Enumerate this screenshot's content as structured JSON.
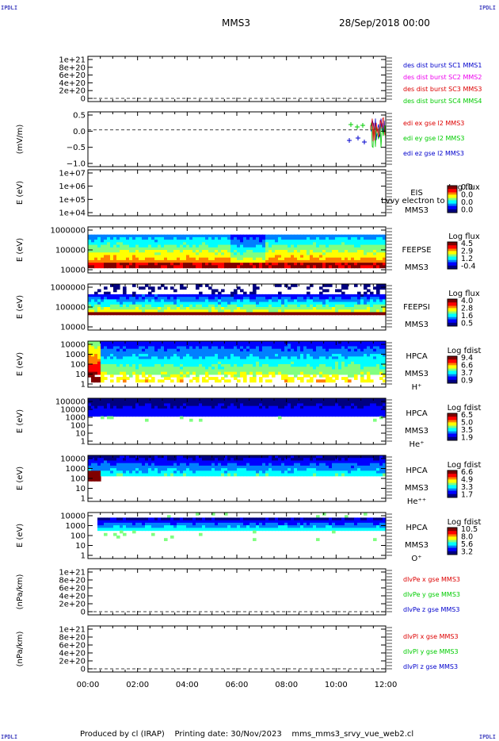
{
  "corner_labels": {
    "top_left": "IPDLI",
    "top_right": "IPDLI",
    "bottom_left": "IPDLI",
    "bottom_right": "IPDLI"
  },
  "header": {
    "spacecraft": "MMS3",
    "datetime": "28/Sep/2018 00:00"
  },
  "footer": {
    "text": "Produced by cl (IRAP)    Printing date: 30/Nov/2023    mms_mms3_srvy_vue_web2.cl"
  },
  "colors": {
    "red": "#dd0000",
    "magenta": "#ee00ee",
    "green": "#00cc00",
    "blue": "#0000cc",
    "colormap": [
      "#000080",
      "#0000ff",
      "#0080ff",
      "#00ffff",
      "#80ff80",
      "#ffff00",
      "#ff8000",
      "#ff0000",
      "#800000"
    ]
  },
  "chart_data": {
    "type": "multi-panel time series",
    "x_ticks": [
      "00:00",
      "02:00",
      "04:00",
      "06:00",
      "08:00",
      "10:00",
      "12:00"
    ],
    "panels": [
      {
        "id": "dist",
        "kind": "line",
        "ylabel": "",
        "yticks": [
          "1e+21",
          "8e+20",
          "6e+20",
          "4e+20",
          "2e+20",
          "0"
        ],
        "legend": [
          {
            "text": "des dist burst SC1 MMS1",
            "color": "#0000cc"
          },
          {
            "text": "des dist burst SC2 MMS2",
            "color": "#ee00ee"
          },
          {
            "text": "des dist burst SC3 MMS3",
            "color": "#dd0000"
          },
          {
            "text": "des dist burst SC4 MMS4",
            "color": "#00cc00"
          }
        ]
      },
      {
        "id": "edi",
        "kind": "line",
        "ylabel": "(mV/m)",
        "yticks": [
          "0.5",
          "0.0",
          "−0.5",
          "−1.0"
        ],
        "legend": [
          {
            "text": "edi ex gse l2 MMS3",
            "color": "#dd0000"
          },
          {
            "text": "edi ey gse l2 MMS3",
            "color": "#00cc00"
          },
          {
            "text": "edi ez gse l2 MMS3",
            "color": "#0000cc"
          }
        ]
      },
      {
        "id": "eis",
        "kind": "spectrogram",
        "ylabel": "E (eV)",
        "yticks": [
          "1e+07",
          "1e+06",
          "1e+05",
          "1e+04"
        ],
        "labels": [
          "EIS",
          "MMS3"
        ],
        "note": "Lvvy electron to",
        "cb_title": "Log flux",
        "cb_ticks": [
          "0.0",
          "0.0",
          "0.0",
          "0.0"
        ]
      },
      {
        "id": "feeps_e",
        "kind": "spectrogram",
        "ylabel": "E (eV)",
        "yticks": [
          "1000000",
          "100000",
          "10000"
        ],
        "labels": [
          "FEEPSE",
          "MMS3"
        ],
        "cb_title": "Log flux",
        "cb_ticks": [
          "4.5",
          "2.9",
          "1.2",
          "-0.4"
        ]
      },
      {
        "id": "feeps_i",
        "kind": "spectrogram",
        "ylabel": "E (eV)",
        "yticks": [
          "1000000",
          "100000",
          "10000"
        ],
        "labels": [
          "FEEPSI",
          "MMS3"
        ],
        "cb_title": "Log flux",
        "cb_ticks": [
          "4.0",
          "2.8",
          "1.6",
          "0.5"
        ]
      },
      {
        "id": "hpca_h",
        "kind": "spectrogram",
        "ylabel": "E (eV)",
        "yticks": [
          "10000",
          "1000",
          "100",
          "10",
          "1"
        ],
        "labels": [
          "HPCA",
          "MMS3",
          "H⁺"
        ],
        "cb_title": "Log fdist",
        "cb_ticks": [
          "9.4",
          "6.6",
          "3.7",
          "0.9"
        ]
      },
      {
        "id": "hpca_he",
        "kind": "spectrogram",
        "ylabel": "E (eV)",
        "yticks": [
          "100000",
          "10000",
          "1000",
          "100",
          "10",
          "1"
        ],
        "labels": [
          "HPCA",
          "MMS3",
          "He⁺"
        ],
        "cb_title": "Log fdist",
        "cb_ticks": [
          "6.5",
          "5.0",
          "3.5",
          "1.9"
        ]
      },
      {
        "id": "hpca_hepp",
        "kind": "spectrogram",
        "ylabel": "E (eV)",
        "yticks": [
          "10000",
          "1000",
          "100",
          "10",
          "1"
        ],
        "labels": [
          "HPCA",
          "MMS3",
          "He⁺⁺"
        ],
        "cb_title": "Log fdist",
        "cb_ticks": [
          "6.6",
          "4.9",
          "3.3",
          "1.7"
        ]
      },
      {
        "id": "hpca_o",
        "kind": "spectrogram",
        "ylabel": "E (eV)",
        "yticks": [
          "10000",
          "1000",
          "100",
          "10",
          "1"
        ],
        "labels": [
          "HPCA",
          "MMS3",
          "O⁺"
        ],
        "cb_title": "Log fdist",
        "cb_ticks": [
          "10.5",
          "8.0",
          "5.6",
          "3.2"
        ]
      },
      {
        "id": "divpe",
        "kind": "line",
        "ylabel": "(nPa/km)",
        "yticks": [
          "1e+21",
          "8e+20",
          "6e+20",
          "4e+20",
          "2e+20",
          "0"
        ],
        "legend": [
          {
            "text": "dlvPe x gse MMS3",
            "color": "#dd0000"
          },
          {
            "text": "dlvPe y gse MMS3",
            "color": "#00cc00"
          },
          {
            "text": "dlvPe z gse MMS3",
            "color": "#0000cc"
          }
        ]
      },
      {
        "id": "divpi",
        "kind": "line",
        "ylabel": "(nPa/km)",
        "yticks": [
          "1e+21",
          "8e+20",
          "6e+20",
          "4e+20",
          "2e+20",
          "0"
        ],
        "legend": [
          {
            "text": "dlvPl x gse MMS3",
            "color": "#dd0000"
          },
          {
            "text": "dlvPl y gse MMS3",
            "color": "#00cc00"
          },
          {
            "text": "dlvPl z gse MMS3",
            "color": "#0000cc"
          }
        ]
      }
    ]
  }
}
